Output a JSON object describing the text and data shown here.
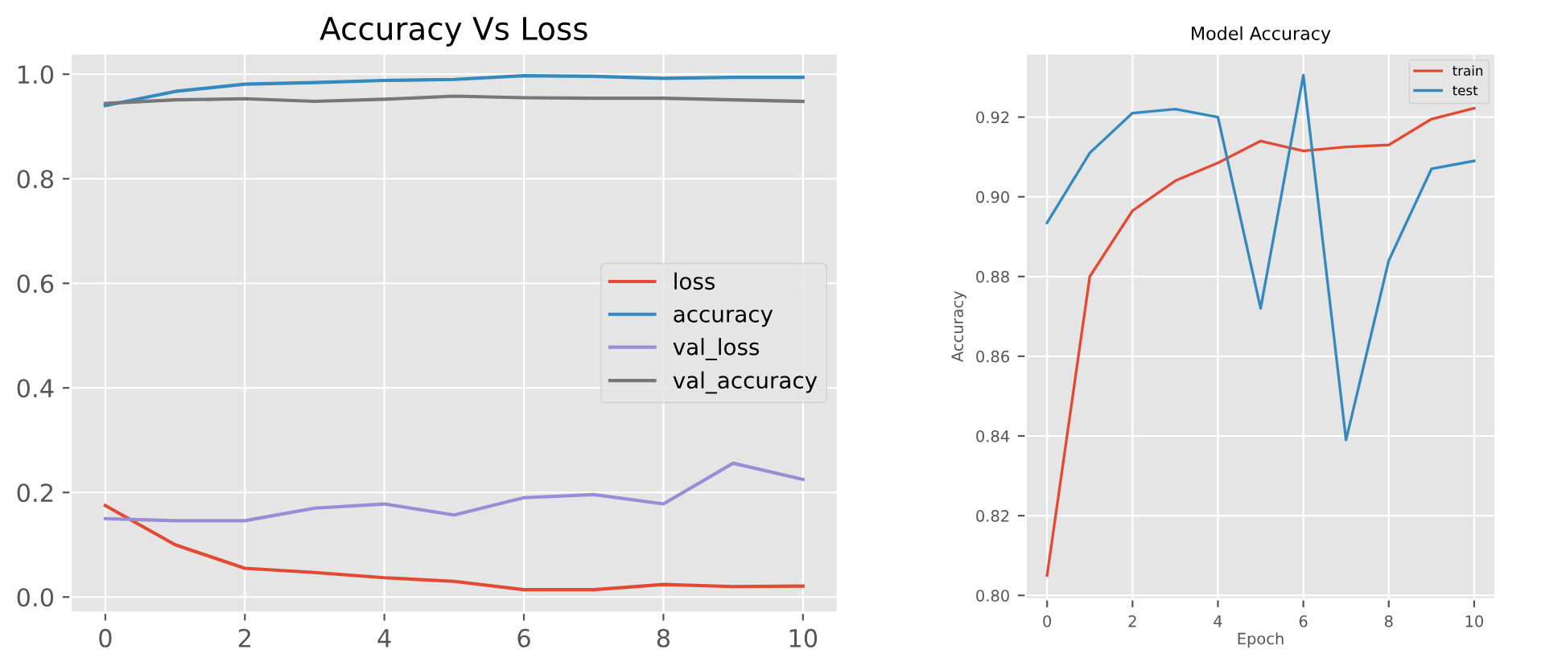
{
  "chart_data": [
    {
      "type": "line",
      "title": "Accuracy Vs Loss",
      "x": [
        0,
        1,
        2,
        3,
        4,
        5,
        6,
        7,
        8,
        9,
        10
      ],
      "xlim": [
        -0.5,
        10.5
      ],
      "xticks": [
        0,
        2,
        4,
        6,
        8,
        10
      ],
      "ylim": [
        -0.03,
        1.04
      ],
      "yticks": [
        {
          "value": 0,
          "label": "0.0"
        },
        0.2,
        0.4,
        0.6,
        0.8,
        {
          "value": 1,
          "label": "1.0"
        }
      ],
      "grid": true,
      "legend": "right",
      "series": [
        {
          "name": "loss",
          "color": "#e24a33",
          "values": [
            0.175,
            0.1,
            0.055,
            0.047,
            0.037,
            0.03,
            0.014,
            0.014,
            0.024,
            0.02,
            0.021
          ]
        },
        {
          "name": "accuracy",
          "color": "#348abd",
          "values": [
            0.94,
            0.967,
            0.981,
            0.984,
            0.988,
            0.99,
            0.997,
            0.996,
            0.992,
            0.994,
            0.994
          ]
        },
        {
          "name": "val_loss",
          "color": "#988ed5",
          "values": [
            0.15,
            0.146,
            0.146,
            0.17,
            0.178,
            0.157,
            0.19,
            0.196,
            0.178,
            0.256,
            0.225
          ]
        },
        {
          "name": "val_accuracy",
          "color": "#777777",
          "values": [
            0.944,
            0.951,
            0.953,
            0.948,
            0.952,
            0.958,
            0.955,
            0.954,
            0.954,
            0.951,
            0.948
          ]
        }
      ]
    },
    {
      "type": "line",
      "title": "Model Accuracy",
      "xlabel": "Epoch",
      "ylabel": "Accuracy",
      "x": [
        0,
        1,
        2,
        3,
        4,
        5,
        6,
        7,
        8,
        9,
        10
      ],
      "xlim": [
        -0.5,
        10.5
      ],
      "xticks": [
        0,
        2,
        4,
        6,
        8,
        10
      ],
      "ylim": [
        0.799,
        0.936
      ],
      "yticks": [
        {
          "value": 0.8,
          "label": "0.80"
        },
        0.82,
        0.84,
        0.86,
        0.88,
        {
          "value": 0.9,
          "label": "0.90"
        },
        0.92
      ],
      "grid": true,
      "legend": "top right",
      "series": [
        {
          "name": "train",
          "color": "#e24a33",
          "values": [
            0.805,
            0.88,
            0.8965,
            0.904,
            0.9085,
            0.914,
            0.9115,
            0.9125,
            0.913,
            0.9195,
            0.9222
          ]
        },
        {
          "name": "test",
          "color": "#348abd",
          "values": [
            0.8935,
            0.911,
            0.921,
            0.922,
            0.92,
            0.872,
            0.9305,
            0.839,
            0.884,
            0.907,
            0.909
          ]
        }
      ]
    }
  ]
}
